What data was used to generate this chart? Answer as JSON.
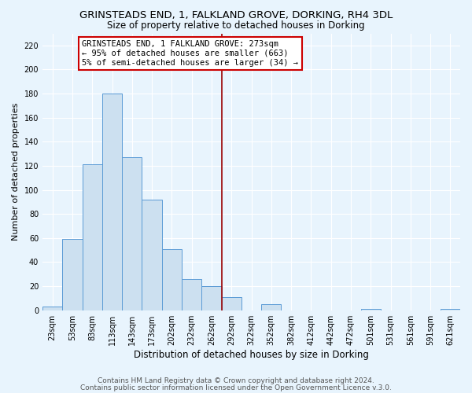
{
  "title": "GRINSTEADS END, 1, FALKLAND GROVE, DORKING, RH4 3DL",
  "subtitle": "Size of property relative to detached houses in Dorking",
  "xlabel": "Distribution of detached houses by size in Dorking",
  "ylabel": "Number of detached properties",
  "bin_labels": [
    "23sqm",
    "53sqm",
    "83sqm",
    "113sqm",
    "143sqm",
    "173sqm",
    "202sqm",
    "232sqm",
    "262sqm",
    "292sqm",
    "322sqm",
    "352sqm",
    "382sqm",
    "412sqm",
    "442sqm",
    "472sqm",
    "501sqm",
    "531sqm",
    "561sqm",
    "591sqm",
    "621sqm"
  ],
  "bar_heights": [
    3,
    59,
    121,
    180,
    127,
    92,
    51,
    26,
    20,
    11,
    0,
    5,
    0,
    0,
    0,
    0,
    1,
    0,
    0,
    0,
    1
  ],
  "bar_color": "#cce0f0",
  "bar_edge_color": "#5b9bd5",
  "vline_x_bin": 8.5,
  "vline_color": "#990000",
  "ylim": [
    0,
    230
  ],
  "yticks": [
    0,
    20,
    40,
    60,
    80,
    100,
    120,
    140,
    160,
    180,
    200,
    220
  ],
  "annotation_title": "GRINSTEADS END, 1 FALKLAND GROVE: 273sqm",
  "annotation_line1": "← 95% of detached houses are smaller (663)",
  "annotation_line2": "5% of semi-detached houses are larger (34) →",
  "footer1": "Contains HM Land Registry data © Crown copyright and database right 2024.",
  "footer2": "Contains public sector information licensed under the Open Government Licence v.3.0.",
  "background_color": "#e8f4fd",
  "grid_color": "#ffffff",
  "title_fontsize": 9.5,
  "subtitle_fontsize": 8.5,
  "xlabel_fontsize": 8.5,
  "ylabel_fontsize": 8,
  "tick_fontsize": 7,
  "annotation_fontsize": 7.5,
  "footer_fontsize": 6.5
}
